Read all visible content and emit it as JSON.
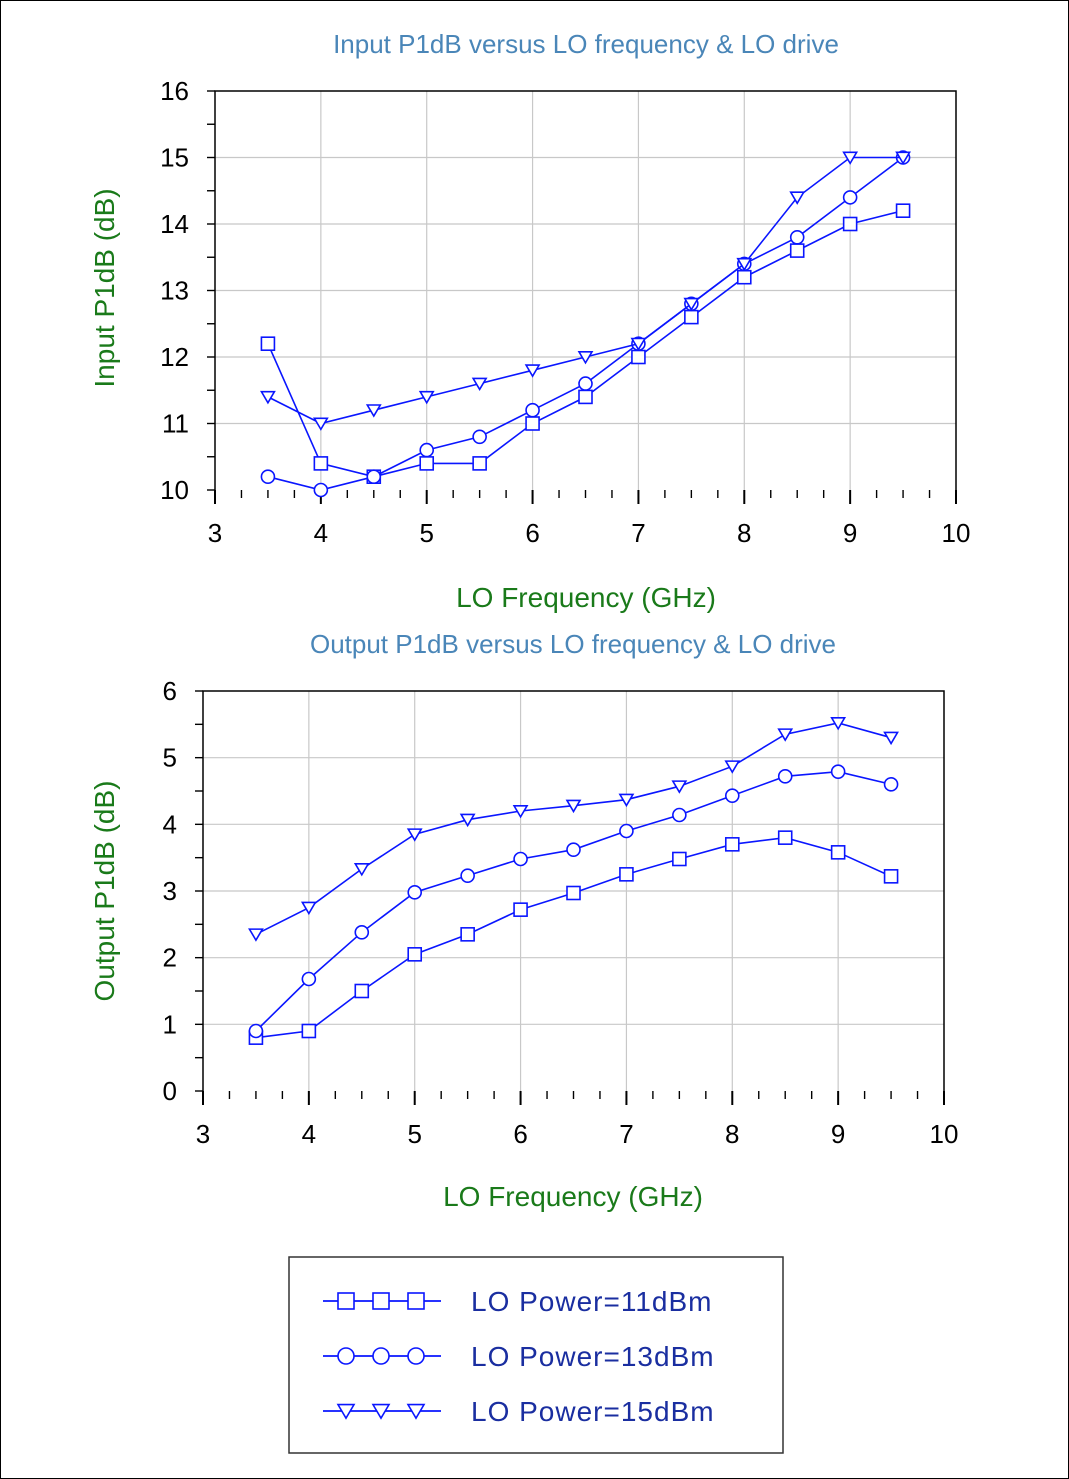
{
  "colors": {
    "series": "#0a16ff",
    "title": "#4a86b8",
    "axis_label": "#1a7a1a",
    "grid": "#c8c8c8",
    "legend_text": "#1a2ea0"
  },
  "chart_data": [
    {
      "type": "line",
      "title": "Input P1dB versus LO frequency & LO drive",
      "xlabel": "LO Frequency (GHz)",
      "ylabel": "Input P1dB (dB)",
      "xlim": [
        3,
        10
      ],
      "ylim": [
        10,
        16
      ],
      "xticks": [
        "3",
        "4",
        "5",
        "6",
        "7",
        "8",
        "9",
        "10"
      ],
      "yticks": [
        "10",
        "11",
        "12",
        "13",
        "14",
        "15",
        "16"
      ],
      "grid": true,
      "x": [
        3.5,
        4,
        4.5,
        5,
        5.5,
        6,
        6.5,
        7,
        7.5,
        8,
        8.5,
        9,
        9.5
      ],
      "series": [
        {
          "name": "LO Power=11dBm",
          "marker": "square",
          "values": [
            12.2,
            10.4,
            10.2,
            10.4,
            10.4,
            11.0,
            11.4,
            12.0,
            12.6,
            13.2,
            13.6,
            14.0,
            14.2
          ]
        },
        {
          "name": "LO Power=13dBm",
          "marker": "circle",
          "values": [
            10.2,
            10.0,
            10.2,
            10.6,
            10.8,
            11.2,
            11.6,
            12.2,
            12.8,
            13.4,
            13.8,
            14.4,
            15.0
          ]
        },
        {
          "name": "LO Power=15dBm",
          "marker": "triangle-down",
          "values": [
            11.4,
            11.0,
            11.2,
            11.4,
            11.6,
            11.8,
            12.0,
            12.2,
            12.8,
            13.4,
            14.4,
            15.0,
            15.0
          ]
        }
      ]
    },
    {
      "type": "line",
      "title": "Output P1dB versus LO frequency & LO drive",
      "xlabel": "LO Frequency (GHz)",
      "ylabel": "Output P1dB (dB)",
      "xlim": [
        3,
        10
      ],
      "ylim": [
        0,
        6
      ],
      "xticks": [
        "3",
        "4",
        "5",
        "6",
        "7",
        "8",
        "9",
        "10"
      ],
      "yticks": [
        "0",
        "1",
        "2",
        "3",
        "4",
        "5",
        "6"
      ],
      "grid": true,
      "x": [
        3.5,
        4,
        4.5,
        5,
        5.5,
        6,
        6.5,
        7,
        7.5,
        8,
        8.5,
        9,
        9.5
      ],
      "series": [
        {
          "name": "LO Power=11dBm",
          "marker": "square",
          "values": [
            0.8,
            0.9,
            1.5,
            2.05,
            2.35,
            2.72,
            2.97,
            3.25,
            3.48,
            3.7,
            3.8,
            3.58,
            3.22
          ]
        },
        {
          "name": "LO Power=13dBm",
          "marker": "circle",
          "values": [
            0.9,
            1.68,
            2.38,
            2.98,
            3.23,
            3.48,
            3.62,
            3.9,
            4.14,
            4.43,
            4.72,
            4.79,
            4.6
          ]
        },
        {
          "name": "LO Power=15dBm",
          "marker": "triangle-down",
          "values": [
            2.35,
            2.75,
            3.33,
            3.85,
            4.07,
            4.2,
            4.28,
            4.37,
            4.57,
            4.87,
            5.35,
            5.52,
            5.3
          ]
        }
      ]
    }
  ],
  "legend": {
    "items": [
      {
        "label": "LO Power=11dBm",
        "marker": "square"
      },
      {
        "label": "LO Power=13dBm",
        "marker": "circle"
      },
      {
        "label": "LO Power=15dBm",
        "marker": "triangle-down"
      }
    ]
  }
}
